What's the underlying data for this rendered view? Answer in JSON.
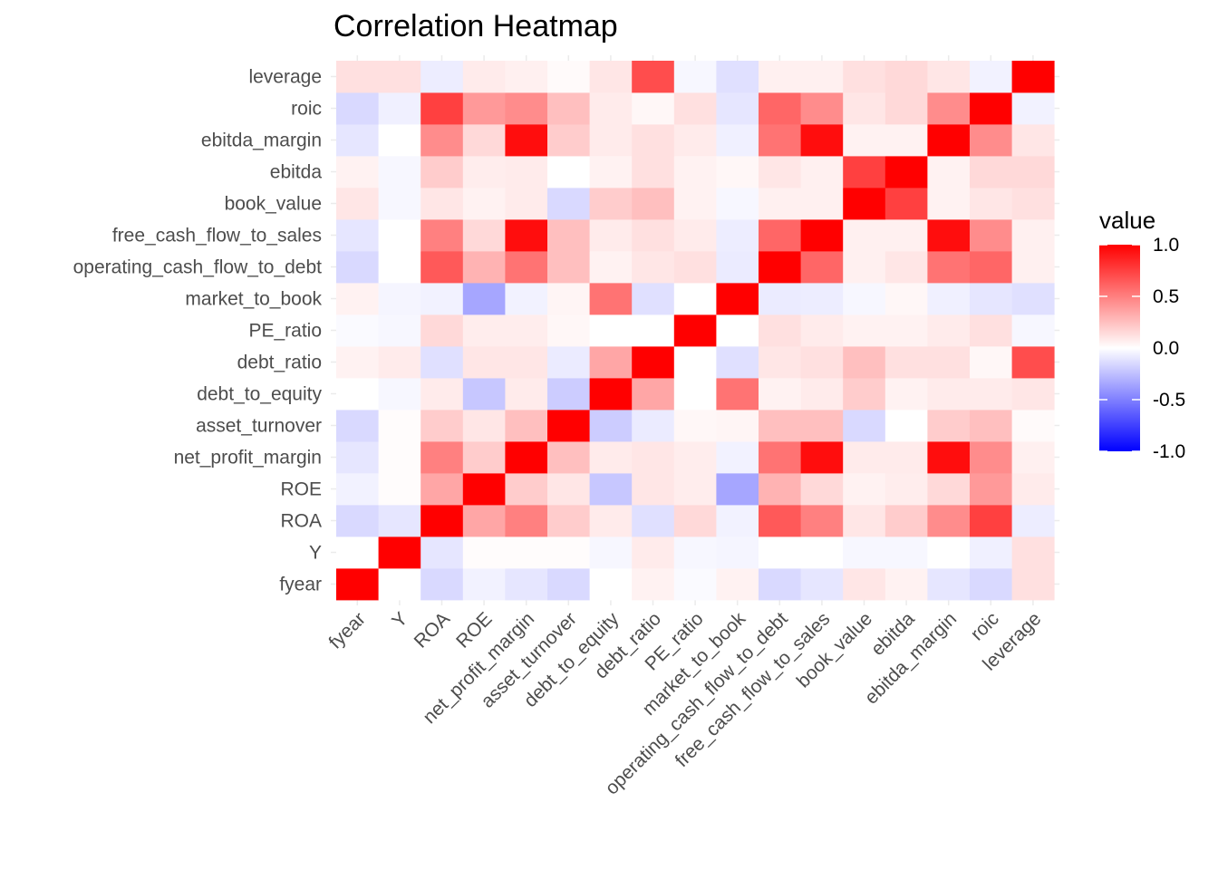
{
  "chart_data": {
    "type": "heatmap",
    "title": "Correlation Heatmap",
    "xlabel": "",
    "ylabel": "",
    "variables": [
      "fyear",
      "Y",
      "ROA",
      "ROE",
      "net_profit_margin",
      "asset_turnover",
      "debt_to_equity",
      "debt_ratio",
      "PE_ratio",
      "market_to_book",
      "operating_cash_flow_to_debt",
      "free_cash_flow_to_sales",
      "book_value",
      "ebitda",
      "ebitda_margin",
      "roic",
      "leverage"
    ],
    "matrix": [
      [
        1.0,
        0.0,
        -0.15,
        -0.05,
        -0.1,
        -0.15,
        0.0,
        0.05,
        -0.02,
        0.05,
        -0.15,
        -0.1,
        0.1,
        0.05,
        -0.1,
        -0.15,
        0.12
      ],
      [
        0.0,
        1.0,
        -0.1,
        0.01,
        0.01,
        0.01,
        -0.03,
        0.08,
        -0.03,
        -0.04,
        0.0,
        0.0,
        -0.03,
        -0.03,
        0.0,
        -0.06,
        0.12
      ],
      [
        -0.15,
        -0.1,
        1.0,
        0.35,
        0.5,
        0.2,
        0.08,
        -0.12,
        0.15,
        -0.05,
        0.65,
        0.5,
        0.1,
        0.2,
        0.45,
        0.75,
        -0.07
      ],
      [
        -0.05,
        0.01,
        0.35,
        1.0,
        0.2,
        0.1,
        -0.22,
        0.1,
        0.07,
        -0.35,
        0.3,
        0.15,
        0.05,
        0.07,
        0.15,
        0.4,
        0.08
      ],
      [
        -0.1,
        0.01,
        0.5,
        0.2,
        1.0,
        0.25,
        0.08,
        0.1,
        0.07,
        -0.05,
        0.55,
        0.95,
        0.08,
        0.08,
        0.95,
        0.45,
        0.06
      ],
      [
        -0.15,
        0.01,
        0.2,
        0.1,
        0.25,
        1.0,
        -0.2,
        -0.08,
        0.03,
        0.04,
        0.25,
        0.25,
        -0.15,
        0.0,
        0.2,
        0.25,
        0.02
      ],
      [
        0.0,
        -0.03,
        0.08,
        -0.22,
        0.08,
        -0.2,
        1.0,
        0.35,
        0.0,
        0.55,
        0.05,
        0.08,
        0.2,
        0.05,
        0.08,
        0.08,
        0.1
      ],
      [
        0.05,
        0.08,
        -0.12,
        0.1,
        0.1,
        -0.08,
        0.35,
        1.0,
        0.0,
        -0.12,
        0.1,
        0.12,
        0.25,
        0.12,
        0.12,
        0.03,
        0.7
      ],
      [
        -0.02,
        -0.03,
        0.15,
        0.07,
        0.07,
        0.03,
        0.0,
        0.0,
        1.0,
        0.0,
        0.12,
        0.08,
        0.05,
        0.05,
        0.08,
        0.12,
        -0.03
      ],
      [
        0.05,
        -0.04,
        -0.05,
        -0.35,
        -0.05,
        0.04,
        0.55,
        -0.12,
        0.0,
        1.0,
        -0.08,
        -0.07,
        -0.03,
        0.03,
        -0.06,
        -0.1,
        -0.12
      ],
      [
        -0.15,
        0.0,
        0.65,
        0.3,
        0.55,
        0.25,
        0.05,
        0.1,
        0.12,
        -0.08,
        1.0,
        0.6,
        0.06,
        0.1,
        0.55,
        0.6,
        0.06
      ],
      [
        -0.1,
        0.0,
        0.5,
        0.15,
        0.95,
        0.25,
        0.08,
        0.12,
        0.08,
        -0.07,
        0.6,
        1.0,
        0.06,
        0.06,
        0.95,
        0.45,
        0.06
      ],
      [
        0.1,
        -0.03,
        0.1,
        0.05,
        0.08,
        -0.15,
        0.2,
        0.25,
        0.05,
        -0.03,
        0.06,
        0.06,
        1.0,
        0.75,
        0.05,
        0.1,
        0.12
      ],
      [
        0.05,
        -0.03,
        0.2,
        0.07,
        0.08,
        0.0,
        0.05,
        0.12,
        0.05,
        0.03,
        0.1,
        0.06,
        0.75,
        1.0,
        0.05,
        0.15,
        0.15
      ],
      [
        -0.1,
        0.0,
        0.45,
        0.15,
        0.95,
        0.2,
        0.08,
        0.12,
        0.08,
        -0.06,
        0.55,
        0.95,
        0.05,
        0.05,
        1.0,
        0.45,
        0.1
      ],
      [
        -0.15,
        -0.06,
        0.75,
        0.4,
        0.45,
        0.25,
        0.08,
        0.03,
        0.12,
        -0.1,
        0.6,
        0.45,
        0.1,
        0.15,
        0.45,
        1.0,
        -0.05
      ],
      [
        0.12,
        0.12,
        -0.07,
        0.08,
        0.06,
        0.02,
        0.1,
        0.7,
        -0.03,
        -0.12,
        0.06,
        0.06,
        0.12,
        0.15,
        0.1,
        -0.05,
        1.0
      ]
    ],
    "value_range": [
      -1.0,
      1.0
    ],
    "grid": true,
    "legend": {
      "title": "value",
      "position": "right",
      "ticks": [
        "1.0",
        "0.5",
        "0.0",
        "-0.5",
        "-1.0"
      ],
      "tick_values": [
        1.0,
        0.5,
        0.0,
        -0.5,
        -1.0
      ]
    },
    "colors": {
      "low": "#0000ff",
      "mid": "#ffffff",
      "high": "#ff0000"
    }
  }
}
